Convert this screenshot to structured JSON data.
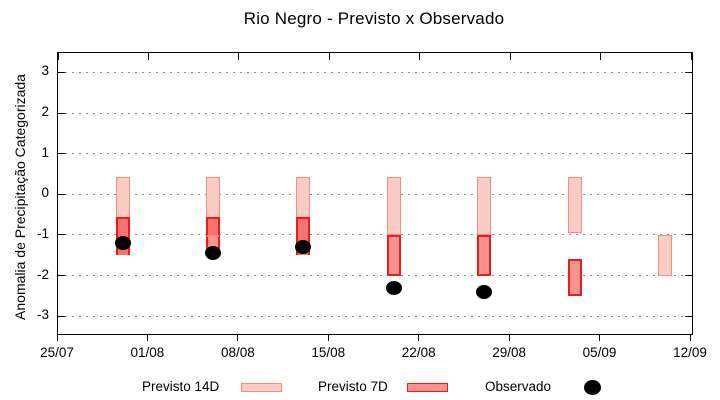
{
  "title": "Rio Negro - Previsto x Observado",
  "chart_data": {
    "type": "bar",
    "subtype": "floating-range-bars-with-scatter",
    "title": "Rio Negro - Previsto x Observado",
    "xlabel": "",
    "ylabel": "Anomalia de Precipitação Categorizada",
    "ylim": [
      -3.44,
      3.48
    ],
    "y_ticks": [
      3,
      2,
      1,
      0,
      -1,
      -2,
      -3
    ],
    "y_tick_labels": [
      "3",
      "2",
      "1",
      "0",
      "-1",
      "-2",
      "-3"
    ],
    "x_tick_labels": [
      "25/07",
      "01/08",
      "08/08",
      "15/08",
      "22/08",
      "29/08",
      "05/09",
      "12/09"
    ],
    "grid": "horizontal-dotted",
    "legend_position": "bottom",
    "groups": [
      {
        "date": "30/07",
        "previsto_14d": {
          "top": 0.43,
          "bottom": -1.5
        },
        "previsto_7d": {
          "top": -0.57,
          "bottom": -1.5
        },
        "observado": -1.2
      },
      {
        "date": "06/08",
        "previsto_14d": {
          "top": 0.43,
          "bottom": -1.0
        },
        "previsto_7d": {
          "top": -0.57,
          "bottom": -1.35
        },
        "observado": -1.45
      },
      {
        "date": "13/08",
        "previsto_14d": {
          "top": 0.43,
          "bottom": -1.5
        },
        "previsto_7d": {
          "top": -0.57,
          "bottom": -1.5
        },
        "observado": -1.3
      },
      {
        "date": "20/08",
        "previsto_14d": {
          "top": 0.43,
          "bottom": -1.0
        },
        "previsto_7d": {
          "top": -1.0,
          "bottom": -2.0
        },
        "observado": -2.3
      },
      {
        "date": "27/08",
        "previsto_14d": {
          "top": 0.43,
          "bottom": -1.0
        },
        "previsto_7d": {
          "top": -1.0,
          "bottom": -2.0
        },
        "observado": -2.4
      },
      {
        "date": "03/09",
        "previsto_14d": {
          "top": 0.43,
          "bottom": -0.95
        },
        "previsto_7d": {
          "top": -1.6,
          "bottom": -2.5
        },
        "observado": null
      },
      {
        "date": "10/09",
        "previsto_14d": {
          "top": -1.0,
          "bottom": -2.0
        },
        "previsto_7d": null,
        "observado": null
      }
    ],
    "legend": {
      "items": [
        {
          "label": "Previsto 14D",
          "swatch": "rect",
          "fill": "#fbccc4",
          "border": "#f09080"
        },
        {
          "label": "Previsto 7D",
          "swatch": "rect",
          "fill": "#fb9292",
          "border": "#e3201d"
        },
        {
          "label": "Observado",
          "swatch": "dot",
          "fill": "#000000",
          "border": "#000000"
        }
      ]
    },
    "colors": {
      "previsto_14d_fill": "#fbccc4",
      "previsto_14d_border": "#f09080",
      "previsto_7d_fill": "#fb9292",
      "previsto_7d_border": "#e3201d",
      "overlap_fill": "#f7736d",
      "observado": "#000000",
      "gridline": "#8a8a8a",
      "axis": "#000000"
    }
  }
}
